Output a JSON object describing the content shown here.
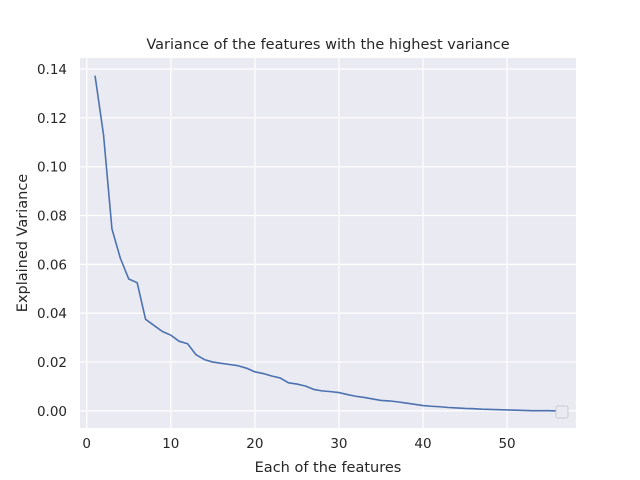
{
  "chart_data": {
    "type": "line",
    "title": "Variance of the features with the highest variance",
    "xlabel": "Each of the features",
    "ylabel": "Explained Variance",
    "xlim": [
      -0.8,
      58.2
    ],
    "ylim": [
      -0.007,
      0.1445
    ],
    "xticks": [
      0,
      10,
      20,
      30,
      40,
      50
    ],
    "yticks": [
      0.0,
      0.02,
      0.04,
      0.06,
      0.08,
      0.1,
      0.12,
      0.14
    ],
    "ytick_labels": [
      "0.00",
      "0.02",
      "0.04",
      "0.06",
      "0.08",
      "0.10",
      "0.12",
      "0.14"
    ],
    "grid": true,
    "legend": "empty box, lower-right",
    "colors": {
      "background": "#eaeaf2",
      "grid": "#ffffff",
      "line": "#4c72b0"
    },
    "series": [
      {
        "x": [
          1,
          2,
          3,
          4,
          5,
          6,
          7,
          8,
          9,
          10,
          11,
          12,
          13,
          14,
          15,
          16,
          17,
          18,
          19,
          20,
          21,
          22,
          23,
          24,
          25,
          26,
          27,
          28,
          29,
          30,
          31,
          32,
          33,
          34,
          35,
          36,
          37,
          38,
          39,
          40,
          41,
          42,
          43,
          44,
          45,
          46,
          47,
          48,
          49,
          50,
          51,
          52,
          53,
          54,
          55,
          56
        ],
        "values": [
          0.137,
          0.113,
          0.0745,
          0.0625,
          0.054,
          0.0525,
          0.0375,
          0.035,
          0.0325,
          0.031,
          0.0285,
          0.0275,
          0.023,
          0.021,
          0.02,
          0.0195,
          0.019,
          0.0185,
          0.0175,
          0.016,
          0.0153,
          0.0143,
          0.0135,
          0.0115,
          0.011,
          0.0102,
          0.0088,
          0.0082,
          0.0079,
          0.0075,
          0.0067,
          0.006,
          0.0055,
          0.0049,
          0.0043,
          0.0041,
          0.0037,
          0.0032,
          0.0027,
          0.0022,
          0.0019,
          0.0017,
          0.0014,
          0.0012,
          0.001,
          0.0009,
          0.0007,
          0.0006,
          0.0005,
          0.0004,
          0.0003,
          0.0002,
          0.0001,
          0.0001,
          0.0001,
          0.0
        ]
      }
    ]
  }
}
